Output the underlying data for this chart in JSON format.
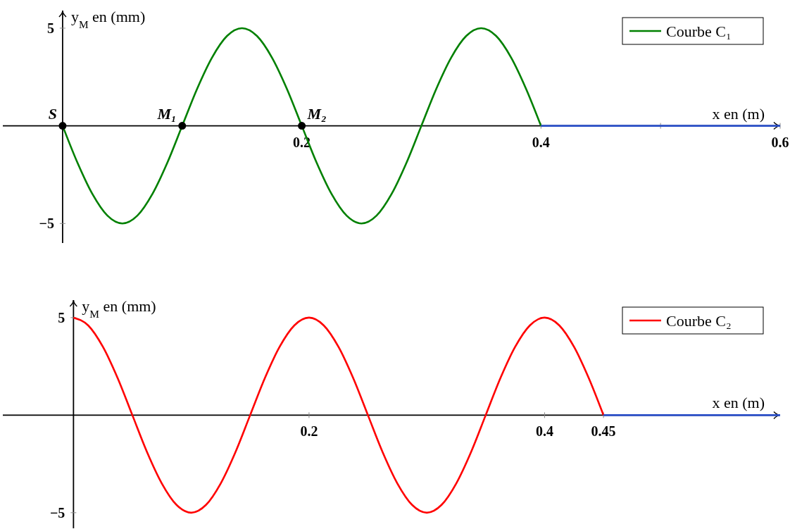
{
  "chart_data": [
    {
      "type": "line",
      "xlabel": "x en (m)",
      "ylabel": "y$_{M}$ en (mm)",
      "xlim": [
        -0.05,
        0.6
      ],
      "ylim": [
        -6,
        5.9
      ],
      "xticks": [
        0.2,
        0.4,
        {
          "value": 0.5,
          "label": null
        },
        0.6
      ],
      "yticks": [
        5,
        {
          "value": -5,
          "label": "−5"
        }
      ],
      "legend": "top right",
      "grid": false,
      "line_style": "solid",
      "series": [
        {
          "name": "Courbe C₁",
          "color": "#008000",
          "x": [
            0,
            0.0125,
            0.025,
            0.0375,
            0.05,
            0.0625,
            0.075,
            0.0875,
            0.1,
            0.1125,
            0.125,
            0.1375,
            0.15,
            0.1625,
            0.175,
            0.1875,
            0.2,
            0.2125,
            0.225,
            0.2375,
            0.25,
            0.2625,
            0.275,
            0.2875,
            0.3,
            0.3125,
            0.325,
            0.3375,
            0.35,
            0.3625,
            0.375,
            0.3875,
            0.4
          ],
          "values": [
            0,
            -1.9,
            -3.5,
            -4.6,
            -5,
            -4.6,
            -3.5,
            -1.9,
            0,
            1.9,
            3.5,
            4.6,
            5,
            4.6,
            3.5,
            1.9,
            0,
            -1.9,
            -3.5,
            -4.6,
            -5,
            -4.6,
            -3.5,
            -1.9,
            0,
            1.9,
            3.5,
            4.6,
            5,
            4.6,
            3.5,
            1.9,
            0
          ]
        },
        {
          "type": "line",
          "color": "#2a4fc8",
          "x": [
            0.4,
            0.6
          ],
          "values": [
            0,
            0
          ]
        },
        {
          "type": "scatter",
          "marker": "circle",
          "color": "#000000",
          "x": [
            0,
            0.1,
            0.2
          ],
          "values": [
            0,
            0,
            0
          ]
        }
      ],
      "annotations": [
        {
          "text": "S",
          "x": 0,
          "y": 0
        },
        {
          "text": "M₁",
          "x": 0.1,
          "y": 0
        },
        {
          "text": "M₂",
          "x": 0.2,
          "y": 0
        }
      ]
    },
    {
      "type": "line",
      "xlabel": "x en (m)",
      "ylabel": "y$_{M}$ en (mm)",
      "xlim": [
        -0.06,
        0.6
      ],
      "ylim": [
        -5.8,
        5.9
      ],
      "xticks": [
        0.2,
        0.4,
        0.45
      ],
      "yticks": [
        5,
        {
          "value": -5,
          "label": "−5"
        }
      ],
      "legend": "top right",
      "grid": false,
      "line_style": "solid",
      "series": [
        {
          "name": "Courbe C₂",
          "color": "#ff0000",
          "x": [
            0,
            0.0125,
            0.025,
            0.0375,
            0.05,
            0.0625,
            0.075,
            0.0875,
            0.1,
            0.1125,
            0.125,
            0.1375,
            0.15,
            0.1625,
            0.175,
            0.1875,
            0.2,
            0.2125,
            0.225,
            0.2375,
            0.25,
            0.2625,
            0.275,
            0.2875,
            0.3,
            0.3125,
            0.325,
            0.3375,
            0.35,
            0.3625,
            0.375,
            0.3875,
            0.4,
            0.4125,
            0.425,
            0.4375,
            0.45
          ],
          "values": [
            5,
            4.6,
            3.5,
            1.9,
            0,
            -1.9,
            -3.5,
            -4.6,
            -5,
            -4.6,
            -3.5,
            -1.9,
            0,
            1.9,
            3.5,
            4.6,
            5,
            4.6,
            3.5,
            1.9,
            0,
            -1.9,
            -3.5,
            -4.6,
            -5,
            -4.6,
            -3.5,
            -1.9,
            0,
            1.9,
            3.5,
            4.6,
            5,
            4.6,
            3.5,
            1.9,
            0
          ]
        },
        {
          "type": "line",
          "color": "#2a4fc8",
          "x": [
            0.45,
            0.6
          ],
          "values": [
            0,
            0
          ]
        }
      ]
    }
  ]
}
